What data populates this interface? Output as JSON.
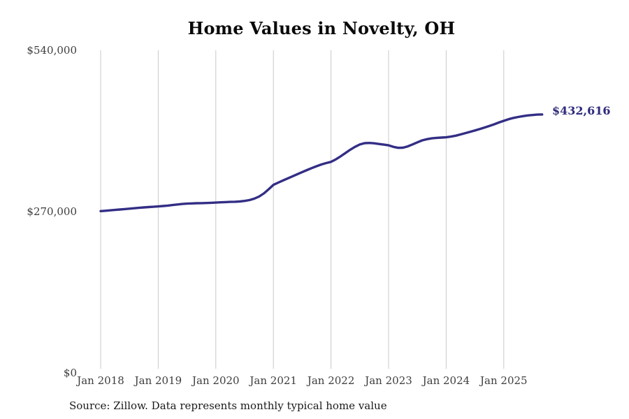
{
  "chart": {
    "title": "Home Values in Novelty, OH",
    "end_label": "$432,616",
    "source_note": "Source: Zillow. Data represents monthly typical home value"
  },
  "colors": {
    "background": "#ffffff",
    "line": "#332e85",
    "end_label": "#2e2a7c",
    "grid": "#c9c9c9",
    "tick_label": "#3d3d3d",
    "title": "#0a0a0a",
    "source": "#1a1a1a"
  },
  "chart_data": {
    "type": "line",
    "title": "Home Values in Novelty, OH",
    "xlabel": "",
    "ylabel": "",
    "frequency": "monthly",
    "x_start": "Jan 2018",
    "x_end": "Sep 2025",
    "x_tick_labels": [
      "Jan 2018",
      "Jan 2019",
      "Jan 2020",
      "Jan 2021",
      "Jan 2022",
      "Jan 2023",
      "Jan 2024",
      "Jan 2025"
    ],
    "y_ticks": [
      {
        "value": 0,
        "label": "$0"
      },
      {
        "value": 270000,
        "label": "$270,000"
      },
      {
        "value": 540000,
        "label": "$540,000"
      }
    ],
    "ylim": [
      0,
      540000
    ],
    "grid": "vertical-only",
    "legend": "none",
    "annotation": {
      "text": "$432,616",
      "attached_to": "last-point"
    },
    "series": [
      {
        "name": "Monthly typical home value",
        "final_value": 432616,
        "final_value_label": "$432,616",
        "values": [
          270800,
          271400,
          272100,
          272800,
          273500,
          274200,
          274900,
          275600,
          276300,
          277000,
          277600,
          278100,
          278600,
          279300,
          280100,
          281000,
          281900,
          282700,
          283300,
          283700,
          284000,
          284200,
          284400,
          284700,
          285100,
          285500,
          285900,
          286200,
          286500,
          287000,
          287900,
          289300,
          291600,
          295100,
          300400,
          307300,
          314800,
          318500,
          322100,
          325600,
          329100,
          332600,
          336100,
          339500,
          342800,
          346000,
          348900,
          351200,
          353200,
          357400,
          362400,
          368000,
          373500,
          378400,
          382300,
          384500,
          384900,
          384300,
          383200,
          382100,
          380900,
          378300,
          376700,
          377000,
          379200,
          382500,
          386000,
          389200,
          391200,
          392600,
          393400,
          393900,
          394400,
          395500,
          397100,
          399100,
          401400,
          403600,
          405800,
          408200,
          410700,
          413300,
          416100,
          419100,
          422000,
          424600,
          426700,
          428400,
          429800,
          430900,
          431700,
          432300,
          432616
        ]
      }
    ]
  }
}
